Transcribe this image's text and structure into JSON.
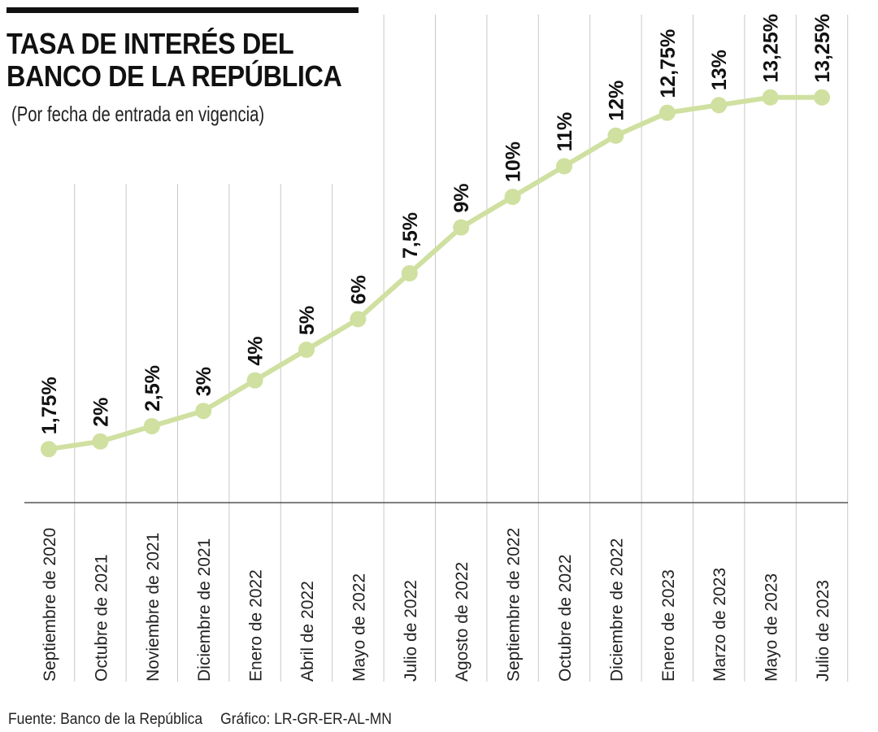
{
  "header": {
    "title_line1": "TASA DE INTERÉS DEL",
    "title_line2": "BANCO DE LA REPÚBLICA",
    "subtitle": "(Por fecha de entrada en vigencia)"
  },
  "footer": {
    "source": "Fuente: Banco de la República",
    "credit": "Gráfico: LR-GR-ER-AL-MN"
  },
  "colors": {
    "line": "#cfe0a0",
    "marker": "#cfe0a0",
    "grid": "#c8c8c8",
    "axis": "#555555",
    "text": "#111111"
  },
  "chart_data": {
    "type": "line",
    "title": "TASA DE INTERÉS DEL BANCO DE LA REPÚBLICA",
    "subtitle": "(Por fecha de entrada en vigencia)",
    "categories": [
      "Septiembre de 2020",
      "Octubre de 2021",
      "Noviembre de 2021",
      "Diciembre de 2021",
      "Enero de 2022",
      "Abril de 2022",
      "Mayo de 2022",
      "Julio de 2022",
      "Agosto de 2022",
      "Septiembre de 2022",
      "Octubre de 2022",
      "Diciembre de 2022",
      "Enero de 2023",
      "Marzo de 2023",
      "Mayo de 2023",
      "Julio de 2023"
    ],
    "values": [
      1.75,
      2,
      2.5,
      3,
      4,
      5,
      6,
      7.5,
      9,
      10,
      11,
      12,
      12.75,
      13,
      13.25,
      13.25
    ],
    "data_labels": [
      "1,75%",
      "2%",
      "2,5%",
      "3%",
      "4%",
      "5%",
      "6%",
      "7,5%",
      "9%",
      "10%",
      "11%",
      "12%",
      "12,75%",
      "13%",
      "13,25%",
      "13,25%"
    ],
    "ylim": [
      0,
      14
    ],
    "grid": "vertical",
    "legend": "none"
  }
}
